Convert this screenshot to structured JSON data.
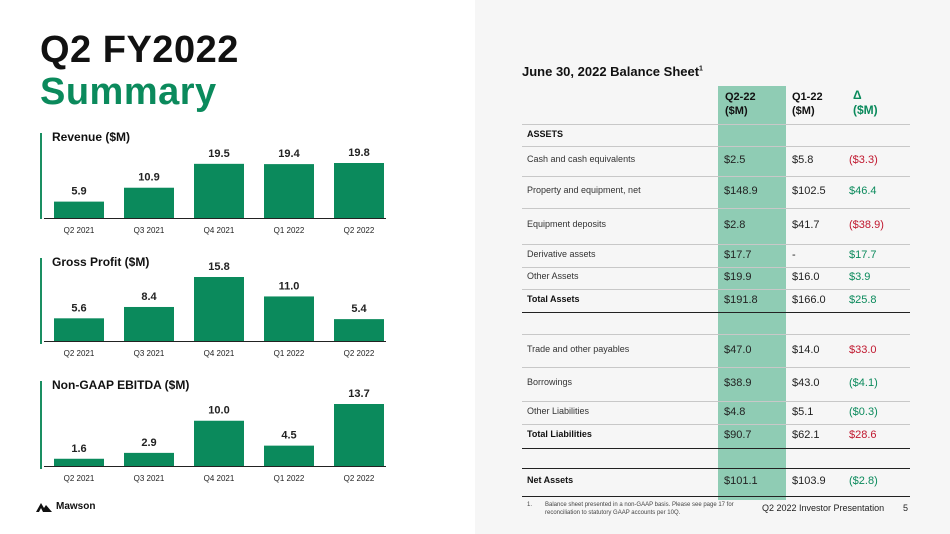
{
  "title": {
    "line1": "Q2 FY2022",
    "line2": "Summary"
  },
  "chart_data": [
    {
      "type": "bar",
      "title": "Revenue ($M)",
      "categories": [
        "Q2 2021",
        "Q3 2021",
        "Q4 2021",
        "Q1 2022",
        "Q2 2022"
      ],
      "values": [
        5.9,
        10.9,
        19.5,
        19.4,
        19.8
      ],
      "labels": [
        "5.9",
        "10.9",
        "19.5",
        "19.4",
        "19.8"
      ],
      "color": "#0b8a5c"
    },
    {
      "type": "bar",
      "title": "Gross Profit ($M)",
      "categories": [
        "Q2 2021",
        "Q3 2021",
        "Q4 2021",
        "Q1 2022",
        "Q2 2022"
      ],
      "values": [
        5.6,
        8.4,
        15.8,
        11.0,
        5.4
      ],
      "labels": [
        "5.6",
        "8.4",
        "15.8",
        "11.0",
        "5.4"
      ],
      "color": "#0b8a5c"
    },
    {
      "type": "bar",
      "title": "Non-GAAP EBITDA ($M)",
      "categories": [
        "Q2 2021",
        "Q3 2021",
        "Q4 2021",
        "Q1 2022",
        "Q2 2022"
      ],
      "values": [
        1.6,
        2.9,
        10.0,
        4.5,
        13.7
      ],
      "labels": [
        "1.6",
        "2.9",
        "10.0",
        "4.5",
        "13.7"
      ],
      "color": "#0b8a5c"
    }
  ],
  "balance_sheet": {
    "title": "June 30, 2022 Balance Sheet",
    "title_sup": "1",
    "headers": {
      "q2_line1": "Q2-22",
      "q2_line2": "($M)",
      "q1_line1": "Q1-22",
      "q1_line2": "($M)",
      "delta_line1": "Δ",
      "delta_line2": "($M)"
    },
    "section_assets": "ASSETS",
    "rows": [
      {
        "label": "Cash and cash equivalents",
        "q2": "$2.5",
        "q1": "$5.8",
        "delta": "($3.3)",
        "delta_color": "neg"
      },
      {
        "label": "Property and equipment, net",
        "q2": "$148.9",
        "q1": "$102.5",
        "delta": "$46.4",
        "delta_color": "pos"
      },
      {
        "label": "Equipment deposits",
        "q2": "$2.8",
        "q1": "$41.7",
        "delta": "($38.9)",
        "delta_color": "neg"
      },
      {
        "label": "Derivative assets",
        "q2": "$17.7",
        "q1": "-",
        "delta": "$17.7",
        "delta_color": "pos"
      },
      {
        "label": "Other Assets",
        "q2": "$19.9",
        "q1": "$16.0",
        "delta": "$3.9",
        "delta_color": "pos"
      },
      {
        "label": "Total Assets",
        "q2": "$191.8",
        "q1": "$166.0",
        "delta": "$25.8",
        "delta_color": "pos"
      },
      {
        "label": "Trade and other payables",
        "q2": "$47.0",
        "q1": "$14.0",
        "delta": "$33.0",
        "delta_color": "neg"
      },
      {
        "label": "Borrowings",
        "q2": "$38.9",
        "q1": "$43.0",
        "delta": "($4.1)",
        "delta_color": "pos"
      },
      {
        "label": "Other Liabilities",
        "q2": "$4.8",
        "q1": "$5.1",
        "delta": "($0.3)",
        "delta_color": "pos"
      },
      {
        "label": "Total Liabilities",
        "q2": "$90.7",
        "q1": "$62.1",
        "delta": "$28.6",
        "delta_color": "neg"
      },
      {
        "label": "Net Assets",
        "q2": "$101.1",
        "q1": "$103.9",
        "delta": "($2.8)",
        "delta_color": "pos"
      }
    ]
  },
  "footnote": {
    "num": "1.",
    "text": "Balance sheet presented in a non-GAAP basis. Please see page 17 for reconciliation to statutory GAAP accounts per 10Q."
  },
  "footer": {
    "text": "Q2 2022 Investor Presentation",
    "page": "5"
  },
  "logo": {
    "name": "Mawson",
    "icon": "mountain-logo-icon"
  }
}
